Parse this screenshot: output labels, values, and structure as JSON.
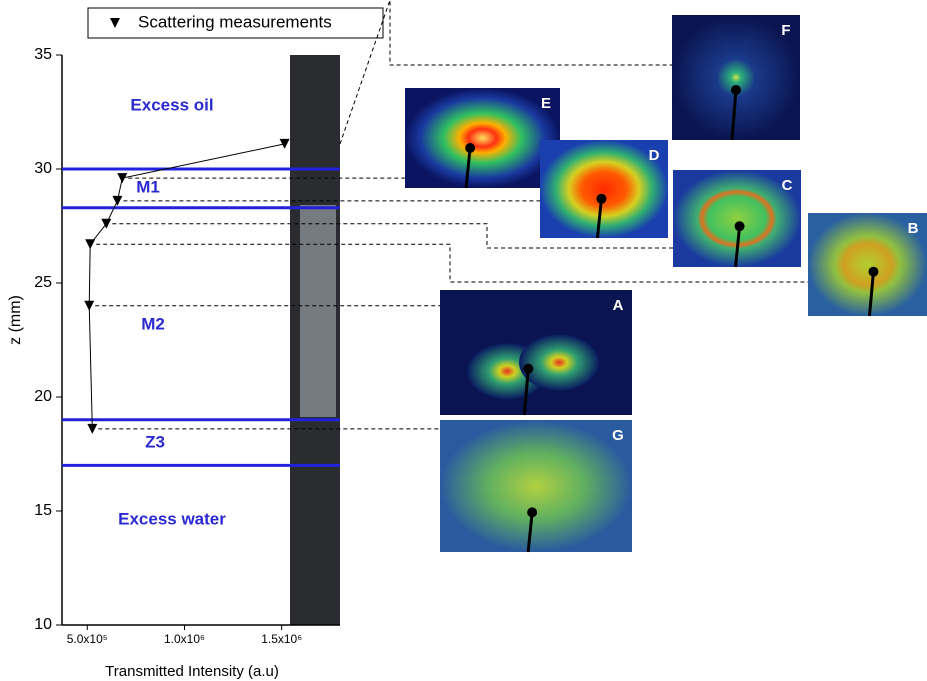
{
  "chart_data": {
    "type": "line",
    "xlabel": "Transmitted Intensity (a.u)",
    "ylabel": "z (mm)",
    "xlim": [
      370000,
      1800000
    ],
    "ylim": [
      10,
      35
    ],
    "xticks": [
      {
        "value": 500000,
        "label": "5.0x10⁵"
      },
      {
        "value": 1000000,
        "label": "1.0x10⁶"
      },
      {
        "value": 1500000,
        "label": "1.5x10⁶"
      }
    ],
    "yticks": [
      10,
      15,
      20,
      25,
      30,
      35
    ],
    "legend_position": "top",
    "series": [
      {
        "name": "Scattering measurements",
        "color": "#000000",
        "marker": "triangle-down",
        "x": [
          1515000,
          680000,
          655000,
          598000,
          515000,
          510000,
          526000
        ],
        "values": [
          31.1,
          29.6,
          28.6,
          27.6,
          26.7,
          24.0,
          18.6
        ]
      }
    ],
    "boundaries": {
      "color": "#2222dd",
      "values": [
        30.0,
        28.3,
        19.0,
        17.0
      ]
    },
    "regions": [
      "Excess oil",
      "M1",
      "M2",
      "Z3",
      "Excess water"
    ],
    "region_color": "#2a2ad0",
    "panels": [
      "F",
      "E",
      "D",
      "C",
      "B",
      "A",
      "G"
    ]
  }
}
